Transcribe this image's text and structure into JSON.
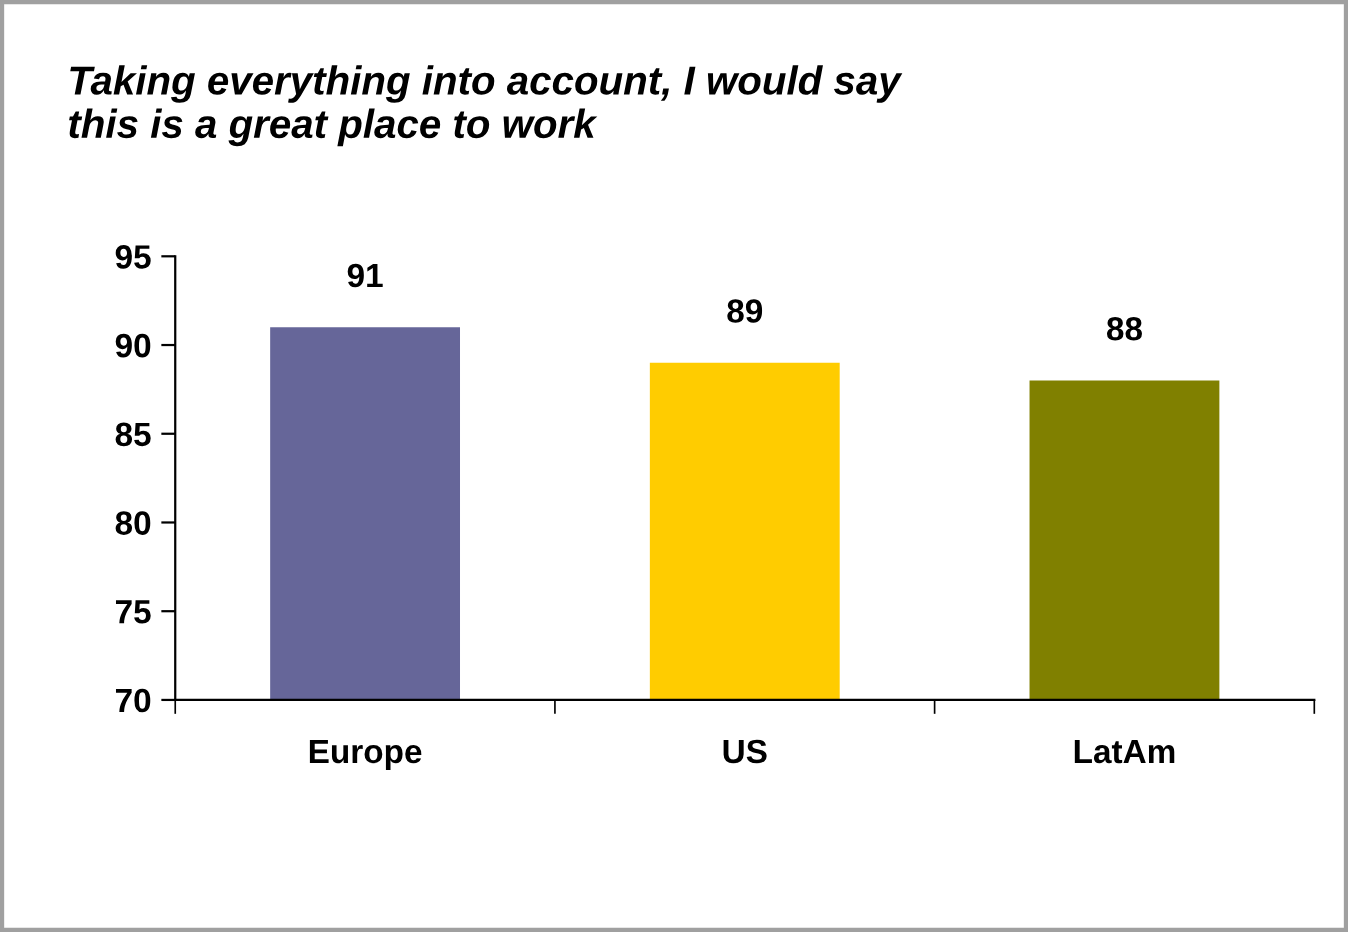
{
  "chart_data": {
    "type": "bar",
    "title": "Taking everything into account, I would say this is a great place to work",
    "categories": [
      "Europe",
      "US",
      "LatAm"
    ],
    "values": [
      91,
      89,
      88
    ],
    "colors": [
      "#666699",
      "#ffcc00",
      "#808000"
    ],
    "ylim": [
      70,
      95
    ],
    "yticks": [
      70,
      75,
      80,
      85,
      90,
      95
    ],
    "data_labels": true,
    "grid": false,
    "legend": false
  }
}
